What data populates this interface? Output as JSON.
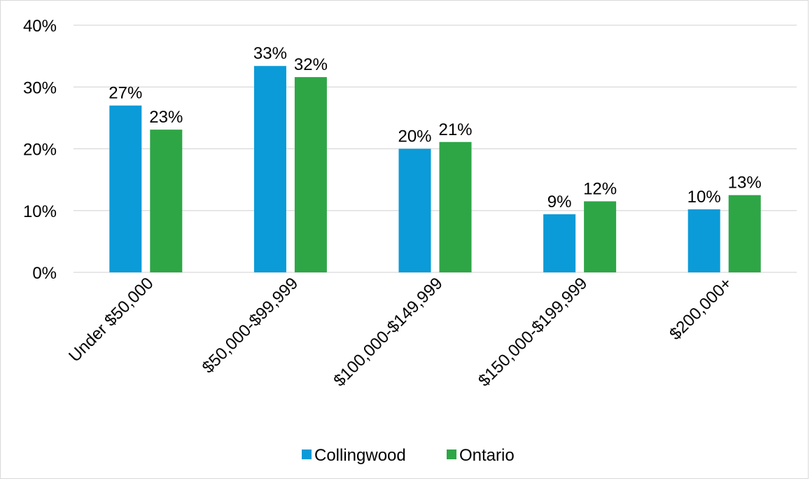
{
  "chart_data": {
    "type": "bar",
    "title": "",
    "xlabel": "",
    "ylabel": "",
    "categories": [
      "Under $50,000",
      "$50,000-$99,999",
      "$100,000-$149,999",
      "$150,000-$199,999",
      "$200,000+"
    ],
    "series": [
      {
        "name": "Collingwood",
        "color": "#0a9bd8",
        "values": [
          27,
          33.4,
          20,
          9.4,
          10.2
        ],
        "labels": [
          "27%",
          "33%",
          "20%",
          "9%",
          "10%"
        ]
      },
      {
        "name": "Ontario",
        "color": "#2ea646",
        "values": [
          23.1,
          31.6,
          21.1,
          11.5,
          12.5
        ],
        "labels": [
          "23%",
          "32%",
          "21%",
          "12%",
          "13%"
        ]
      }
    ],
    "ylim": [
      0,
      40
    ],
    "y_ticks": [
      "0%",
      "10%",
      "20%",
      "30%",
      "40%"
    ],
    "grid": true,
    "legend_position": "bottom"
  }
}
